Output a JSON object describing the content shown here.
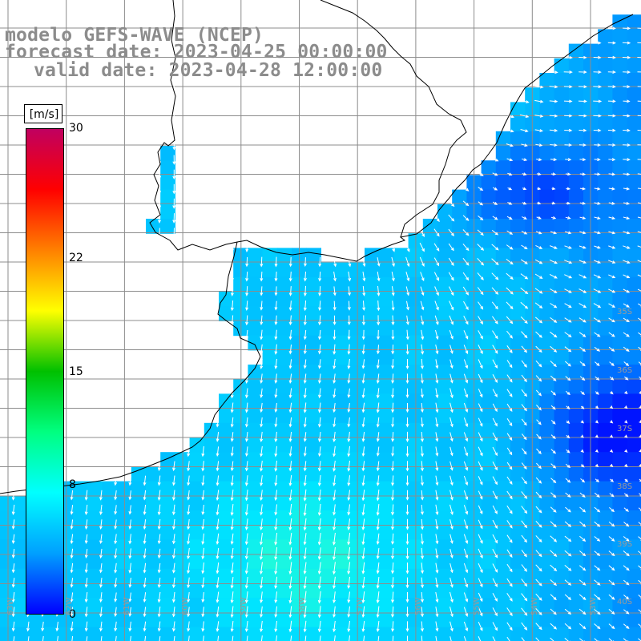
{
  "title": {
    "model": "modelo GEFS-WAVE (NCEP)",
    "forecast": "forecast date: 2023-04-25 00:00:00",
    "valid": "valid date: 2023-04-28 12:00:00"
  },
  "colorbar": {
    "unit": "[m/s]",
    "ticks": [
      {
        "label": "30",
        "value": 30
      },
      {
        "label": "22",
        "value": 22
      },
      {
        "label": "15",
        "value": 15
      },
      {
        "label": "8",
        "value": 8
      },
      {
        "label": "0",
        "value": 0
      }
    ],
    "range": [
      0,
      30
    ],
    "colors": [
      "#0000ff",
      "#00a0ff",
      "#00ffff",
      "#00ff80",
      "#00c000",
      "#ffff00",
      "#ff8000",
      "#ff0000",
      "#c00060"
    ]
  },
  "lat_labels": [
    "35S",
    "36S",
    "37S",
    "38S",
    "39S",
    "40S"
  ],
  "lon_labels": [
    "63W",
    "62W",
    "61W",
    "60W",
    "59W",
    "58W",
    "57W",
    "56W",
    "55W",
    "54W",
    "53W",
    "52W"
  ],
  "colors": {
    "land": "#ffffff",
    "grid": "#8c8c8c",
    "coast": "#000000",
    "arrow": "#ffffff",
    "title": "#8c8c8c"
  }
}
